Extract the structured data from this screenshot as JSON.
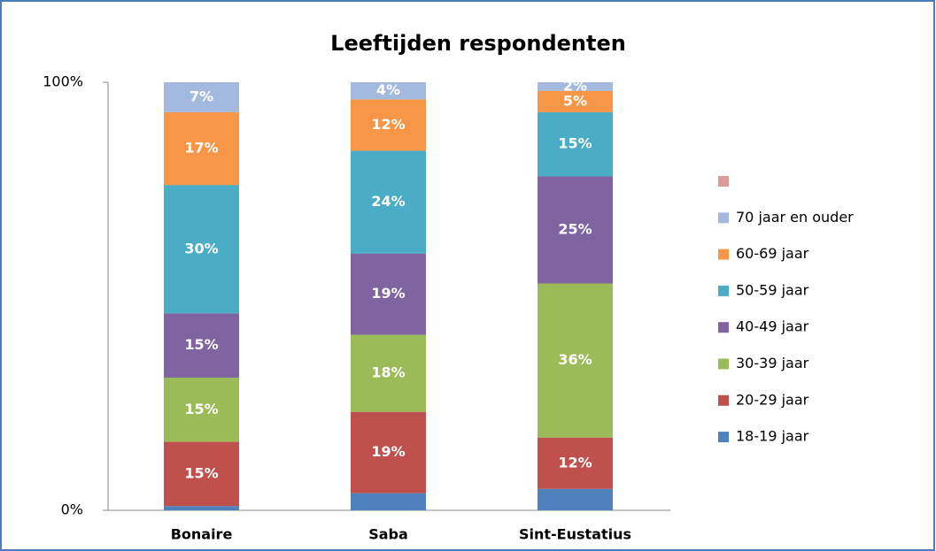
{
  "chart_data": {
    "type": "stacked_bar",
    "title": "Leeftijden respondenten",
    "categories": [
      "Bonaire",
      "Saba",
      "Sint-Eustatius"
    ],
    "ylim": [
      0,
      100
    ],
    "yticks": [
      {
        "value": 0,
        "label": "0%"
      },
      {
        "value": 100,
        "label": "100%"
      }
    ],
    "series": [
      {
        "name": "18-19 jaar",
        "color": "#4f81bd",
        "values": [
          1,
          4,
          5
        ],
        "value_labels": [
          null,
          null,
          null
        ]
      },
      {
        "name": "20-29 jaar",
        "color": "#c0504d",
        "values": [
          15,
          19,
          12
        ],
        "value_labels": [
          "15%",
          "19%",
          "12%"
        ]
      },
      {
        "name": "30-39 jaar",
        "color": "#9bbb59",
        "values": [
          15,
          18,
          36
        ],
        "value_labels": [
          "15%",
          "18%",
          "36%"
        ]
      },
      {
        "name": "40-49 jaar",
        "color": "#8064a2",
        "values": [
          15,
          19,
          25
        ],
        "value_labels": [
          "15%",
          "19%",
          "25%"
        ]
      },
      {
        "name": "50-59 jaar",
        "color": "#4bacc6",
        "values": [
          30,
          24,
          15
        ],
        "value_labels": [
          "30%",
          "24%",
          "15%"
        ]
      },
      {
        "name": "60-69 jaar",
        "color": "#f79646",
        "values": [
          17,
          12,
          5
        ],
        "value_labels": [
          "17%",
          "12%",
          "5%"
        ]
      },
      {
        "name": "70 jaar en ouder",
        "color": "#a3b9de",
        "values": [
          7,
          4,
          2
        ],
        "value_labels": [
          "7%",
          "4%",
          "2%"
        ]
      },
      {
        "name": null,
        "color": "#dc9a98",
        "values": [
          null,
          null,
          null
        ]
      }
    ]
  }
}
